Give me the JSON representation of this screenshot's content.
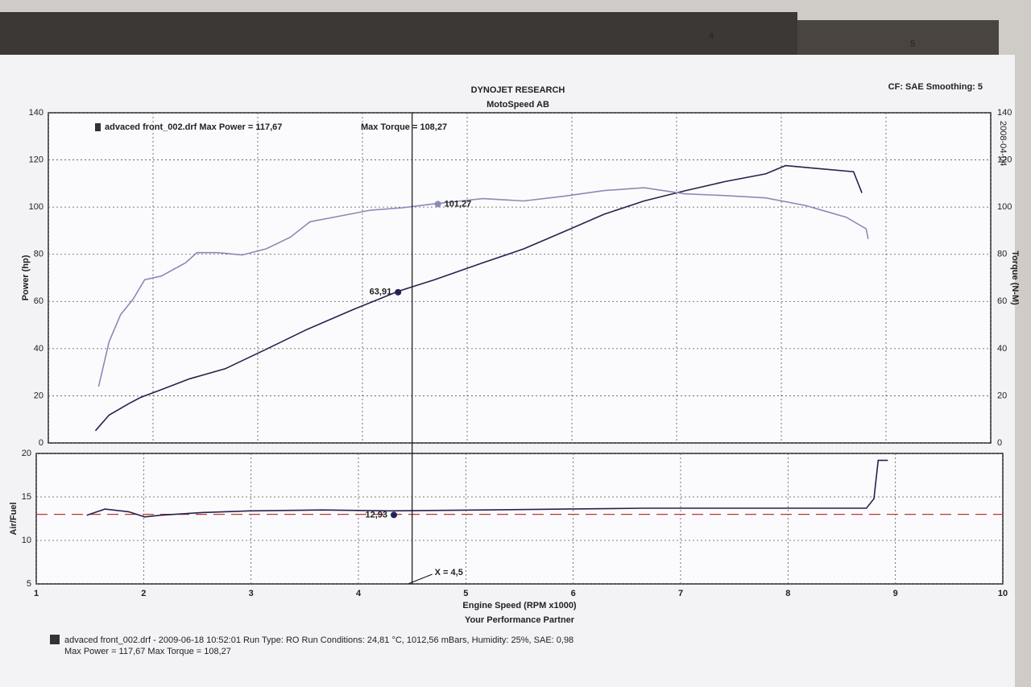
{
  "header": {
    "title": "DYNOJET RESEARCH",
    "subtitle": "MotoSpeed AB",
    "settings": "CF: SAE  Smoothing: 5",
    "tabs": [
      "4",
      "5"
    ],
    "side_date": "2008-04-04"
  },
  "chart_data": [
    {
      "type": "line",
      "legend_text": [
        "advaced front_002.drf Max Power = 117,67",
        "Max Torque = 108,27"
      ],
      "ylabel": "Power (hp)",
      "y2label": "Torque (N-M)",
      "xlim": [
        1,
        10
      ],
      "ylim": [
        0,
        140
      ],
      "yticks": [
        0,
        20,
        40,
        60,
        80,
        100,
        120,
        140
      ],
      "y2lim": [
        0,
        140
      ],
      "y2ticks": [
        0,
        20,
        40,
        60,
        80,
        100,
        120,
        140
      ],
      "grid": true,
      "series": [
        {
          "color": "#23234f",
          "x": [
            1.45,
            1.58,
            1.77,
            1.88,
            2.08,
            2.35,
            2.69,
            3.08,
            3.46,
            3.92,
            4.34,
            4.69,
            5.15,
            5.54,
            5.92,
            6.31,
            6.69,
            7.08,
            7.46,
            7.85,
            8.04,
            8.31,
            8.69,
            8.77
          ],
          "values": [
            5.2,
            11.8,
            16.7,
            19.3,
            22.6,
            27.2,
            31.5,
            39.7,
            47.9,
            56.7,
            64.3,
            69.2,
            76.4,
            82.3,
            89.5,
            97.0,
            102.6,
            106.9,
            110.8,
            114.1,
            117.6,
            116.5,
            115.0,
            106.0
          ]
        },
        {
          "color": "#8a8ab8",
          "axis": "y2",
          "x": [
            1.48,
            1.58,
            1.69,
            1.81,
            1.92,
            2.08,
            2.31,
            2.42,
            2.62,
            2.85,
            3.08,
            3.31,
            3.5,
            3.77,
            4.08,
            4.38,
            4.67,
            5.15,
            5.54,
            5.92,
            6.31,
            6.69,
            7.08,
            7.46,
            7.85,
            8.23,
            8.62,
            8.81,
            8.83
          ],
          "values": [
            23.9,
            42.9,
            54.4,
            61.0,
            69.2,
            70.8,
            76.4,
            80.7,
            80.7,
            79.7,
            82.3,
            87.2,
            93.8,
            96.1,
            98.7,
            99.7,
            101.3,
            103.6,
            102.6,
            104.6,
            107.0,
            108.2,
            105.6,
            104.9,
            103.9,
            100.7,
            95.7,
            90.8,
            86.5
          ]
        }
      ],
      "annotations": [
        {
          "x": 4.72,
          "y": 101.27,
          "axis": "y2",
          "label": "101,27"
        },
        {
          "x": 4.34,
          "y": 63.91,
          "label": "63,91"
        }
      ]
    },
    {
      "type": "line",
      "ylabel": "Air/Fuel",
      "xlabel": "Engine Speed (RPM x1000)",
      "xlabel2": "Your Performance Partner",
      "xlim": [
        1,
        10
      ],
      "xticks": [
        1,
        2,
        3,
        4,
        5,
        6,
        7,
        8,
        9,
        10
      ],
      "ylim": [
        5,
        20
      ],
      "yticks": [
        5,
        10,
        15,
        20
      ],
      "grid": true,
      "ref_line": 13,
      "ref_color": "#c0392b",
      "cursor": {
        "value": 4.5,
        "label": "X = 4,5"
      },
      "series": [
        {
          "color": "#23234f",
          "x": [
            1.47,
            1.64,
            1.86,
            2.01,
            2.16,
            2.54,
            2.99,
            3.66,
            4.3,
            5.16,
            5.91,
            6.66,
            7.41,
            8.16,
            8.73,
            8.8,
            8.84,
            8.93
          ],
          "values": [
            12.9,
            13.6,
            13.3,
            12.7,
            12.9,
            13.2,
            13.4,
            13.5,
            13.4,
            13.5,
            13.6,
            13.7,
            13.7,
            13.7,
            13.7,
            14.8,
            19.2,
            19.2
          ]
        }
      ],
      "annotations": [
        {
          "x": 4.33,
          "y": 12.93,
          "label": "12,93"
        }
      ]
    }
  ],
  "footer": [
    "advaced front_002.drf - 2009-06-18 10:52:01  Run Type: RO  Run Conditions: 24,81 °C, 1012,56 mBars,  Humidity:  25%, SAE: 0,98",
    "Max Power = 117,67  Max Torque = 108,27"
  ]
}
